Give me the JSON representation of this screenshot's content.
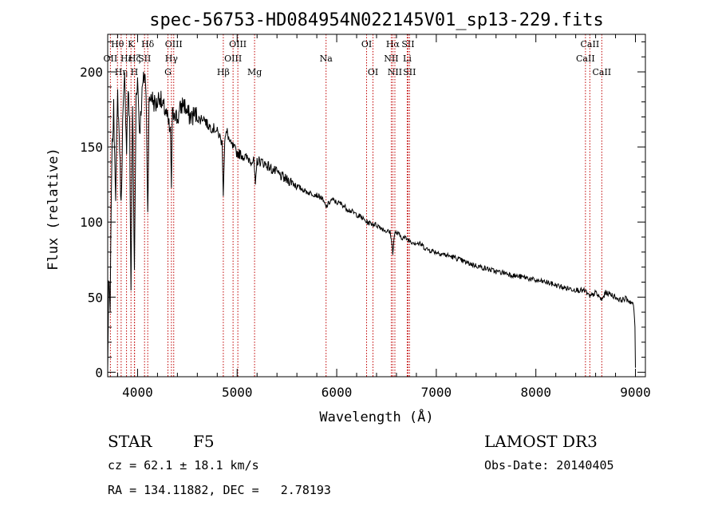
{
  "chart_data": {
    "type": "line",
    "title": "spec-56753-HD084954N022145V01_sp13-229.fits",
    "xlabel": "Wavelength (Å)",
    "ylabel": "Flux (relative)",
    "xlim": [
      3700,
      9100
    ],
    "ylim": [
      -3,
      225
    ],
    "xticks": [
      4000,
      5000,
      6000,
      7000,
      8000,
      9000
    ],
    "xtick_labels": [
      "4000",
      "5000",
      "6000",
      "7000",
      "8000",
      "9000"
    ],
    "yticks": [
      0,
      50,
      100,
      150,
      200
    ],
    "ytick_labels": [
      "0",
      "50",
      "100",
      "150",
      "200"
    ],
    "grid": false,
    "series": [
      {
        "name": "spectrum",
        "x": [
          3700,
          3710,
          3725,
          3740,
          3760,
          3780,
          3800,
          3820,
          3835,
          3850,
          3870,
          3890,
          3905,
          3920,
          3934,
          3950,
          3968,
          3985,
          4000,
          4020,
          4050,
          4075,
          4090,
          4102,
          4115,
          4135,
          4160,
          4190,
          4220,
          4250,
          4280,
          4310,
          4330,
          4340,
          4350,
          4370,
          4400,
          4430,
          4460,
          4500,
          4540,
          4580,
          4620,
          4660,
          4700,
          4740,
          4780,
          4820,
          4850,
          4861,
          4875,
          4900,
          4930,
          4960,
          5000,
          5040,
          5080,
          5120,
          5170,
          5183,
          5200,
          5250,
          5300,
          5350,
          5400,
          5450,
          5500,
          5550,
          5600,
          5650,
          5700,
          5750,
          5800,
          5850,
          5893,
          5950,
          6000,
          6050,
          6100,
          6150,
          6200,
          6250,
          6300,
          6350,
          6400,
          6450,
          6500,
          6540,
          6563,
          6580,
          6600,
          6650,
          6700,
          6750,
          6800,
          6850,
          6900,
          7000,
          7100,
          7200,
          7300,
          7400,
          7500,
          7600,
          7700,
          7800,
          7900,
          8000,
          8100,
          8200,
          8300,
          8400,
          8498,
          8542,
          8600,
          8662,
          8700,
          8750,
          8800,
          8850,
          8900,
          8950,
          8980,
          8995,
          9000
        ],
        "y": [
          0,
          60,
          40,
          140,
          175,
          120,
          185,
          150,
          110,
          165,
          195,
          150,
          190,
          165,
          55,
          180,
          65,
          185,
          195,
          160,
          190,
          200,
          172,
          105,
          178,
          185,
          180,
          178,
          185,
          176,
          175,
          165,
          158,
          125,
          170,
          175,
          168,
          175,
          180,
          172,
          170,
          172,
          168,
          170,
          165,
          163,
          162,
          158,
          152,
          120,
          155,
          160,
          152,
          150,
          146,
          145,
          143,
          142,
          140,
          122,
          141,
          140,
          138,
          135,
          133,
          130,
          128,
          127,
          124,
          122,
          120,
          119,
          118,
          116,
          110,
          115,
          113,
          112,
          109,
          107,
          105,
          103,
          100,
          99,
          98,
          96,
          94,
          93,
          80,
          92,
          93,
          90,
          89,
          87,
          86,
          85,
          82,
          80,
          78,
          76,
          73,
          71,
          69,
          67,
          66,
          64,
          63,
          61,
          60,
          58,
          56,
          55,
          54,
          50,
          53,
          48,
          53,
          52,
          50,
          48,
          49,
          47,
          45,
          30,
          3
        ]
      }
    ],
    "annotations": [
      {
        "label": "Hθ",
        "x": 3798,
        "row": 1
      },
      {
        "label": "OII",
        "x": 3727,
        "row": 2
      },
      {
        "label": "Hη",
        "x": 3835,
        "row": 3
      },
      {
        "label": "K",
        "x": 3934,
        "row": 1
      },
      {
        "label": "Hε",
        "x": 3889,
        "row": 2
      },
      {
        "label": "H",
        "x": 3968,
        "row": 3
      },
      {
        "label": "Hδ",
        "x": 4102,
        "row": 1
      },
      {
        "label": "SII",
        "x": 4070,
        "row": 2
      },
      {
        "label": "Hζ",
        "x": 3970,
        "row": 2
      },
      {
        "label": "OIII",
        "x": 4363,
        "row": 1
      },
      {
        "label": "Hγ",
        "x": 4340,
        "row": 2
      },
      {
        "label": "G",
        "x": 4305,
        "row": 3
      },
      {
        "label": "Hβ",
        "x": 4861,
        "row": 3
      },
      {
        "label": "OIII",
        "x": 5007,
        "row": 1
      },
      {
        "label": "OIII",
        "x": 4959,
        "row": 2
      },
      {
        "label": "Mg",
        "x": 5175,
        "row": 3
      },
      {
        "label": "Na",
        "x": 5893,
        "row": 2
      },
      {
        "label": "OI",
        "x": 6300,
        "row": 1
      },
      {
        "label": "OI",
        "x": 6364,
        "row": 3
      },
      {
        "label": "Hα",
        "x": 6563,
        "row": 1
      },
      {
        "label": "NII",
        "x": 6548,
        "row": 2
      },
      {
        "label": "NII",
        "x": 6584,
        "row": 3
      },
      {
        "label": "SII",
        "x": 6716,
        "row": 1
      },
      {
        "label": "Li",
        "x": 6708,
        "row": 2
      },
      {
        "label": "SII",
        "x": 6731,
        "row": 3
      },
      {
        "label": "CaII",
        "x": 8542,
        "row": 1
      },
      {
        "label": "CaII",
        "x": 8498,
        "row": 2
      },
      {
        "label": "CaII",
        "x": 8662,
        "row": 3
      }
    ]
  },
  "info": {
    "object_class": "STAR",
    "subclass": "F5",
    "cz": "cz = 62.1 ± 18.1 km/s",
    "coords": "RA = 134.11882, DEC =   2.78193",
    "survey": "LAMOST DR3",
    "obs_date": "Obs-Date: 20140405"
  }
}
